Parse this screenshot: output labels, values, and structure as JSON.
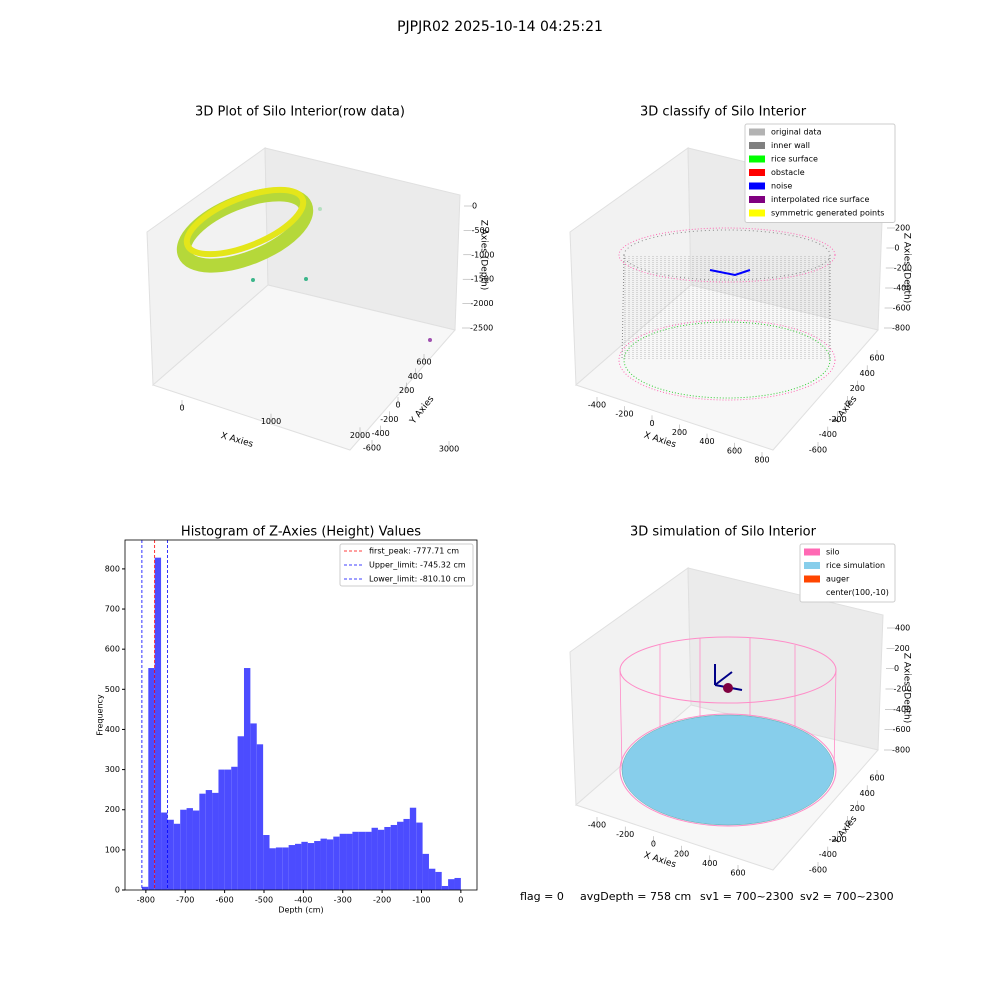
{
  "title": "PJPJR02 2025-10-14 04:25:21",
  "status": [
    "flag = 0",
    "avgDepth = 758 cm",
    "sv1 = 700~2300",
    "sv2 = 700~2300"
  ],
  "chart_data": [
    {
      "type": "scatter3d",
      "title": "3D Plot of Silo Interior(row data)",
      "xlabel": "X Axies",
      "ylabel": "Y Axies",
      "zlabel": "Z Axies (Depth)",
      "xticks": [
        0,
        1000,
        2000,
        3000
      ],
      "yticks": [
        -600,
        -400,
        -200,
        0,
        200,
        400,
        600
      ],
      "zticks": [
        0,
        -500,
        -1000,
        -1500,
        -2000,
        -2500
      ]
    },
    {
      "type": "scatter3d",
      "title": "3D classify of Silo Interior",
      "xlabel": "X Axies",
      "ylabel": "Y Axies",
      "zlabel": "Z Axies (Depth)",
      "xticks": [
        -400,
        -200,
        0,
        200,
        400,
        600,
        800
      ],
      "yticks": [
        -600,
        -400,
        -200,
        0,
        200,
        400,
        600
      ],
      "zticks": [
        200,
        0,
        -200,
        -400,
        -600,
        -800
      ],
      "legend": [
        {
          "name": "original data",
          "color": "#b3b3b3"
        },
        {
          "name": "inner wall",
          "color": "#808080"
        },
        {
          "name": "rice surface",
          "color": "#00ff00"
        },
        {
          "name": "obstacle",
          "color": "#ff0000"
        },
        {
          "name": "noise",
          "color": "#0000ff"
        },
        {
          "name": "interpolated rice surface",
          "color": "#800080"
        },
        {
          "name": "symmetric generated points",
          "color": "#ffff00"
        }
      ]
    },
    {
      "type": "histogram",
      "title": "Histogram of Z-Axies (Height) Values",
      "xlabel": "Depth (cm)",
      "ylabel": "Frequency",
      "color": "#4c4cff",
      "bins": [
        -810,
        -793.8,
        -777.6,
        -761.4,
        -745.2,
        -729,
        -712.8,
        -696.6,
        -680.4,
        -664.2,
        -648,
        -631.8,
        -615.6,
        -599.4,
        -583.2,
        -567,
        -550.8,
        -534.6,
        -518.4,
        -502.2,
        -486,
        -469.8,
        -453.6,
        -437.4,
        -421.2,
        -405,
        -388.8,
        -372.6,
        -356.4,
        -340.2,
        -324,
        -307.8,
        -291.6,
        -275.4,
        -259.2,
        -243,
        -226.8,
        -210.6,
        -194.4,
        -178.2,
        -162,
        -145.8,
        -129.6,
        -113.4,
        -97.2,
        -81,
        -64.8,
        -48.6,
        -32.4,
        -16.2,
        0
      ],
      "values": [
        8,
        553,
        828,
        193,
        175,
        165,
        200,
        204,
        198,
        240,
        249,
        242,
        300,
        300,
        307,
        383,
        553,
        415,
        363,
        137,
        104,
        106,
        106,
        112,
        115,
        120,
        117,
        122,
        128,
        126,
        133,
        140,
        140,
        145,
        145,
        145,
        155,
        150,
        157,
        162,
        170,
        177,
        205,
        168,
        90,
        53,
        45,
        10,
        27,
        30
      ],
      "xlim": [
        -853,
        41
      ],
      "ylim": [
        0,
        872
      ],
      "xticks": [
        -800,
        -700,
        -600,
        -500,
        -400,
        -300,
        -200,
        -100,
        0
      ],
      "yticks": [
        0,
        100,
        200,
        300,
        400,
        500,
        600,
        700,
        800
      ],
      "vlines": [
        {
          "name": "first_peak: -777.71 cm",
          "value": -777.71,
          "color": "#ff0000"
        },
        {
          "name": "Upper_limit: -745.32 cm",
          "value": -745.32,
          "color": "#0000ff"
        },
        {
          "name": "Lower_limit: -810.10 cm",
          "value": -810.1,
          "color": "#0000ff"
        }
      ]
    },
    {
      "type": "scatter3d",
      "title": "3D simulation of Silo Interior",
      "xlabel": "X Axies",
      "ylabel": "Y Axies",
      "zlabel": "Z Axies (Depth)",
      "xticks": [
        -400,
        -200,
        0,
        200,
        400,
        600
      ],
      "yticks": [
        -600,
        -400,
        -200,
        0,
        200,
        400,
        600
      ],
      "zticks": [
        400,
        200,
        0,
        -200,
        -400,
        -600,
        -800
      ],
      "legend": [
        {
          "name": "silo",
          "color": "#ff69b4"
        },
        {
          "name": "rice simulation",
          "color": "#87ceeb"
        },
        {
          "name": "auger",
          "color": "#ff4500"
        },
        {
          "name": "center(100,-10)"
        }
      ]
    }
  ]
}
